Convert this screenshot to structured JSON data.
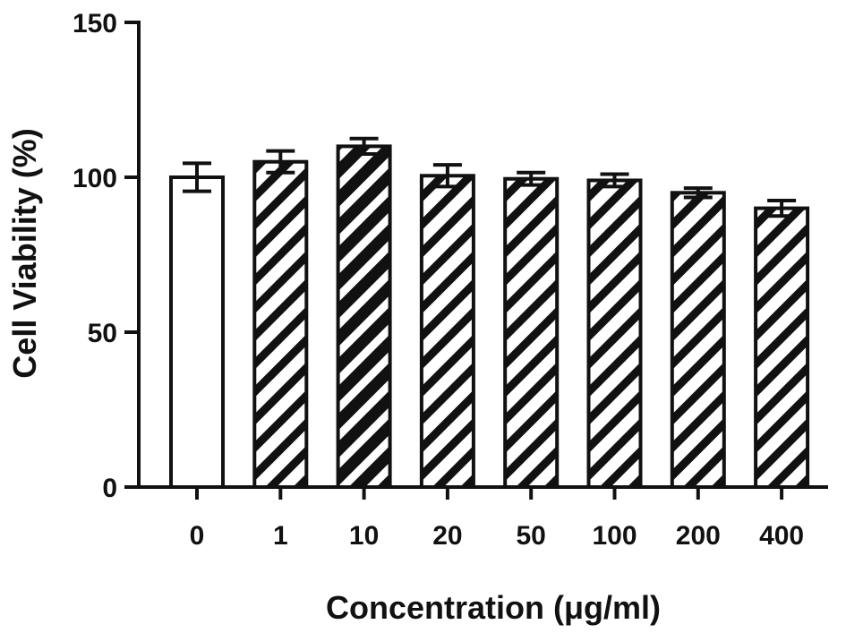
{
  "chart_data": {
    "type": "bar",
    "title": "",
    "xlabel": "Concentration (μg/ml)",
    "ylabel": "Cell Viability (%)",
    "ylim": [
      0,
      150
    ],
    "yticks": [
      "0",
      "50",
      "100",
      "150"
    ],
    "categories": [
      "0",
      "1",
      "10",
      "20",
      "50",
      "100",
      "200",
      "400"
    ],
    "values": [
      100,
      105,
      110,
      100.5,
      99.5,
      99,
      95,
      90
    ],
    "errors": [
      4.5,
      3.5,
      2.5,
      3.5,
      2,
      2,
      1.5,
      2.5
    ],
    "fills": [
      "open",
      "hatch",
      "hatch-dense",
      "hatch",
      "hatch",
      "hatch",
      "hatch",
      "hatch"
    ],
    "grid": false,
    "colors": {
      "stroke": "#111111",
      "background": "#ffffff"
    }
  }
}
